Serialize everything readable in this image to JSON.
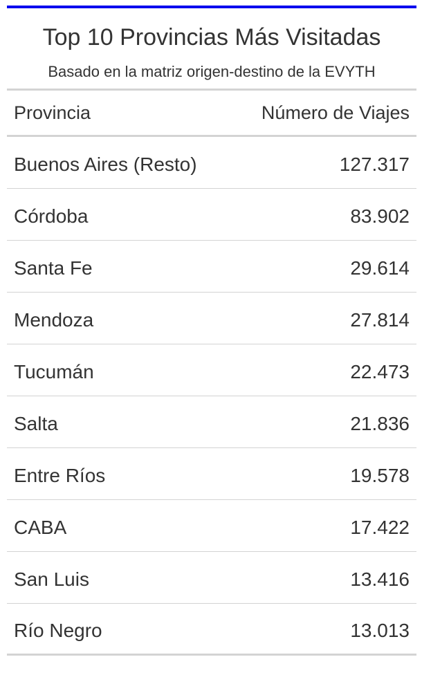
{
  "chart_data": {
    "type": "table",
    "title": "Top 10 Provincias Más Visitadas",
    "subtitle": "Basado en la matriz origen-destino de la EVYTH",
    "columns": [
      "Provincia",
      "Número de Viajes"
    ],
    "rows": [
      {
        "provincia": "Buenos Aires (Resto)",
        "viajes": "127.317"
      },
      {
        "provincia": "Córdoba",
        "viajes": "83.902"
      },
      {
        "provincia": "Santa Fe",
        "viajes": "29.614"
      },
      {
        "provincia": "Mendoza",
        "viajes": "27.814"
      },
      {
        "provincia": "Tucumán",
        "viajes": "22.473"
      },
      {
        "provincia": "Salta",
        "viajes": "21.836"
      },
      {
        "provincia": "Entre Ríos",
        "viajes": "19.578"
      },
      {
        "provincia": "CABA",
        "viajes": "17.422"
      },
      {
        "provincia": "San Luis",
        "viajes": "13.416"
      },
      {
        "provincia": "Río Negro",
        "viajes": "13.013"
      }
    ]
  },
  "colors": {
    "top_rule": "#0000ee",
    "separator": "#d3d3d3",
    "text": "#333333"
  }
}
